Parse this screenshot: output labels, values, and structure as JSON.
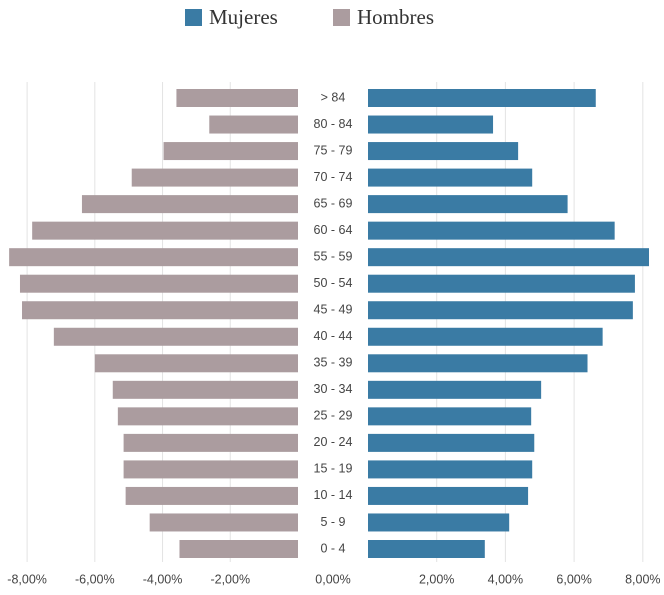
{
  "chart_data": {
    "type": "pyramid",
    "categories": [
      "> 84",
      "80 - 84",
      "75 - 79",
      "70 - 74",
      "65 - 69",
      "60 - 64",
      "55 - 59",
      "50 - 54",
      "45 - 49",
      "40 - 44",
      "35 - 39",
      "30 - 34",
      "25 - 29",
      "20 - 24",
      "15 - 19",
      "10 - 14",
      "5 - 9",
      "0 - 4"
    ],
    "series": [
      {
        "name": "Mujeres",
        "color": "#3a7ba4",
        "values": [
          6.63,
          3.64,
          4.37,
          4.78,
          5.81,
          7.18,
          8.18,
          7.77,
          7.71,
          6.83,
          6.39,
          5.04,
          4.75,
          4.84,
          4.78,
          4.66,
          4.11,
          3.4
        ]
      },
      {
        "name": "Hombres",
        "color": "#ab9c9f",
        "values": [
          -3.59,
          -2.62,
          -3.97,
          -4.91,
          -6.38,
          -7.85,
          -8.53,
          -8.21,
          -8.15,
          -7.21,
          -6.0,
          -5.47,
          -5.32,
          -5.15,
          -5.15,
          -5.09,
          -4.38,
          -3.5
        ]
      }
    ],
    "xlim": [
      -8.8,
      8.5
    ],
    "xticks": [
      {
        "value": -8,
        "label": "-8,00%"
      },
      {
        "value": -6,
        "label": "-6,00%"
      },
      {
        "value": -4,
        "label": "-4,00%"
      },
      {
        "value": -2,
        "label": "-2,00%"
      },
      {
        "value": 0,
        "label": "0,00%"
      },
      {
        "value": 2,
        "label": "2,00%"
      },
      {
        "value": 4,
        "label": "4,00%"
      },
      {
        "value": 6,
        "label": "6,00%"
      },
      {
        "value": 8,
        "label": "8,00%"
      }
    ],
    "grid": true
  }
}
